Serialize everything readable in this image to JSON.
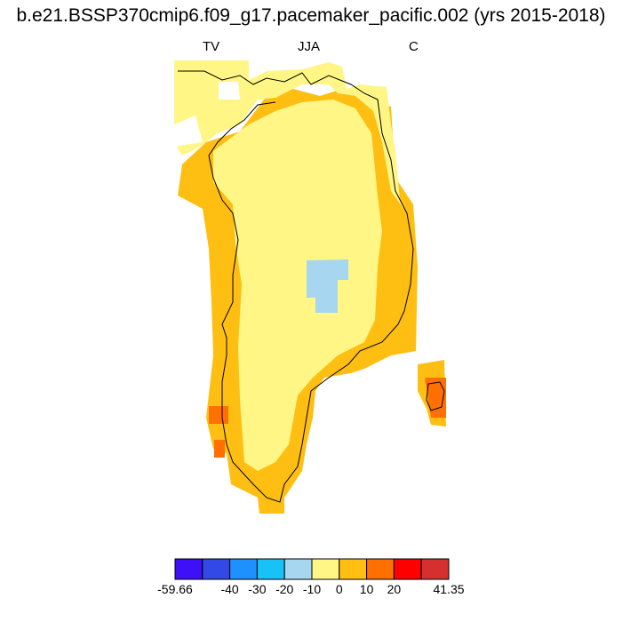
{
  "title": "b.e21.BSSP370cmip6.f09_g17.pacemaker_pacific.002 (yrs 2015-2018)",
  "left_label": "TV",
  "center_label": "JJA",
  "right_label": "C",
  "colorbar": {
    "colors": [
      "#3e10f8",
      "#3249e8",
      "#1e90ff",
      "#18c1f6",
      "#a6d6f0",
      "#fff685",
      "#ffbe12",
      "#ff7000",
      "#ff0000",
      "#d62f30"
    ],
    "tick_labels": [
      "-59.66",
      "-40",
      "-30",
      "-20",
      "-10",
      "0",
      "10",
      "20",
      "41.35"
    ]
  }
}
